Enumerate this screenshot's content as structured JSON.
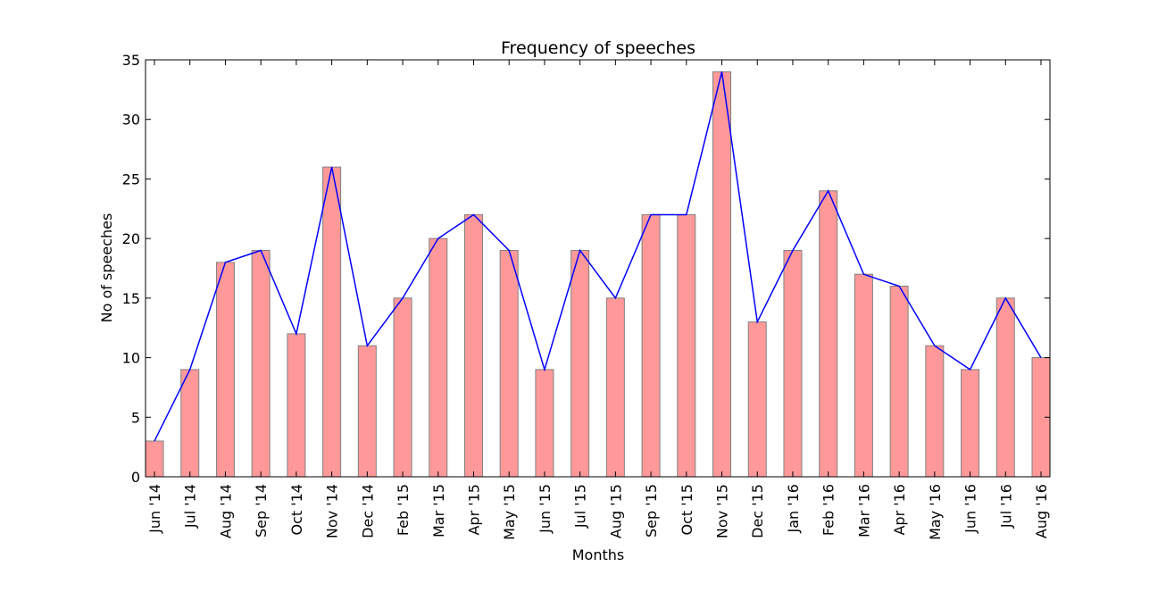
{
  "chart_data": {
    "type": "bar",
    "title": "Frequency of speeches",
    "xlabel": "Months",
    "ylabel": "No of speeches",
    "ylim": [
      0,
      35
    ],
    "yticks": [
      0,
      5,
      10,
      15,
      20,
      25,
      30,
      35
    ],
    "grid": false,
    "categories": [
      "Jun '14",
      "Jul '14",
      "Aug '14",
      "Sep '14",
      "Oct '14",
      "Nov '14",
      "Dec '14",
      "Feb '15",
      "Mar '15",
      "Apr '15",
      "May '15",
      "Jun '15",
      "Jul '15",
      "Aug '15",
      "Sep '15",
      "Oct '15",
      "Nov '15",
      "Dec '15",
      "Jan '16",
      "Feb '16",
      "Mar '16",
      "Apr '16",
      "May '16",
      "Jun '16",
      "Jul '16",
      "Aug '16"
    ],
    "values": [
      3,
      9,
      18,
      19,
      12,
      26,
      11,
      15,
      20,
      22,
      19,
      9,
      19,
      15,
      22,
      22,
      34,
      13,
      19,
      24,
      17,
      16,
      11,
      9,
      15,
      10
    ],
    "overlay": "line",
    "colors": {
      "bar_fill": "#ff9999",
      "bar_edge": "#808080",
      "line": "#0000ff"
    }
  }
}
